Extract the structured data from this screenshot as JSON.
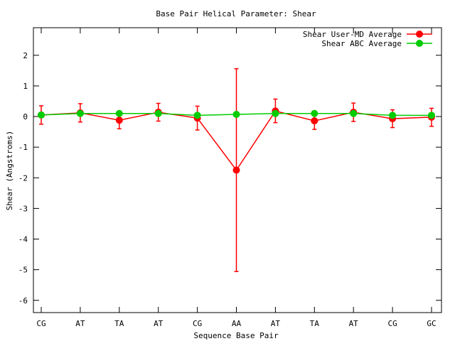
{
  "chart_data": {
    "type": "line",
    "title": "Base Pair Helical Parameter: Shear",
    "xlabel": "Sequence Base Pair",
    "ylabel": "Shear (Angstroms)",
    "categories": [
      "CG",
      "AT",
      "TA",
      "AT",
      "CG",
      "AA",
      "AT",
      "TA",
      "AT",
      "CG",
      "GC"
    ],
    "ylim": [
      -6.4,
      2.9
    ],
    "yticks": [
      -6,
      -5,
      -4,
      -3,
      -2,
      -1,
      0,
      1,
      2
    ],
    "ytick_labels": [
      "-6",
      "-5",
      "-4",
      "-3",
      "-2",
      "-1",
      "0",
      "1",
      "2"
    ],
    "legend_position": "top-right",
    "grid": false,
    "series": [
      {
        "name": "Shear User-MD Average",
        "color": "#ff0000",
        "values": [
          0.05,
          0.12,
          -0.12,
          0.14,
          -0.05,
          -1.75,
          0.18,
          -0.14,
          0.14,
          -0.07,
          -0.02
        ],
        "err_low": [
          -0.25,
          -0.18,
          -0.4,
          -0.15,
          -0.44,
          -5.06,
          -0.2,
          -0.42,
          -0.16,
          -0.36,
          -0.32
        ],
        "err_high": [
          0.35,
          0.42,
          0.15,
          0.43,
          0.34,
          1.56,
          0.57,
          0.16,
          0.44,
          0.22,
          0.27
        ]
      },
      {
        "name": "Shear ABC Average",
        "color": "#00cc00",
        "values": [
          0.05,
          0.1,
          0.1,
          0.1,
          0.04,
          0.07,
          0.1,
          0.1,
          0.1,
          0.04,
          0.04
        ]
      }
    ]
  }
}
